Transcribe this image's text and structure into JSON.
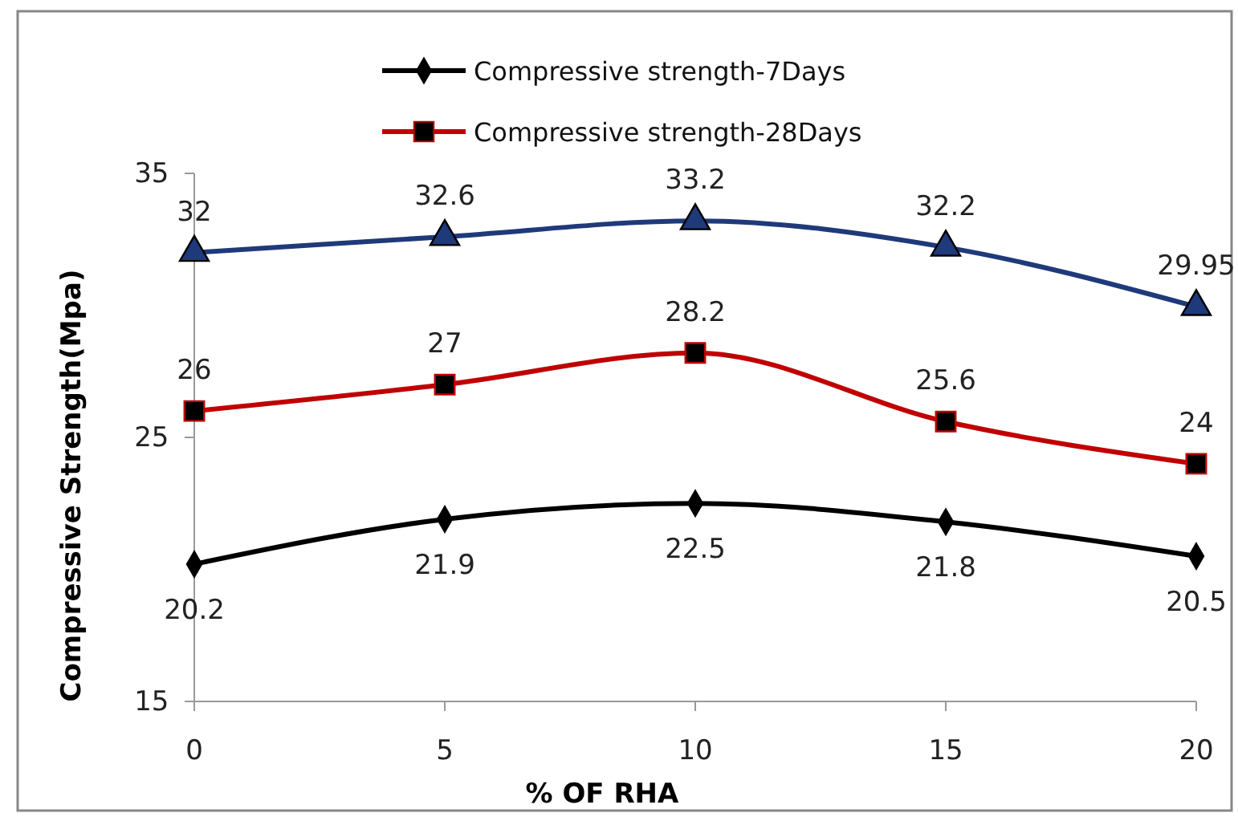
{
  "chart_data": {
    "type": "line",
    "xlabel": "% OF RHA",
    "ylabel": "Compressive Strength(Mpa)",
    "x": [
      0,
      5,
      10,
      15,
      20
    ],
    "xlim": [
      0,
      20
    ],
    "xticks": [
      0,
      5,
      10,
      15,
      20
    ],
    "ylim": [
      15,
      35
    ],
    "yticks": [
      15,
      25,
      35
    ],
    "grid": false,
    "legend": "top",
    "data_labels": true,
    "line_style": "solid",
    "series": [
      {
        "name": "Compressive strength-7Days",
        "color": "#000000",
        "marker": "diamond",
        "values": [
          20.2,
          21.9,
          22.5,
          21.8,
          20.5
        ]
      },
      {
        "name": "Compressive strength-28Days",
        "color": "#c00000",
        "marker": "square",
        "values": [
          26,
          27,
          28.2,
          25.6,
          24
        ]
      },
      {
        "color": "#1f3a7a",
        "marker": "triangle",
        "values": [
          32,
          32.6,
          33.2,
          32.2,
          29.95
        ]
      }
    ]
  }
}
